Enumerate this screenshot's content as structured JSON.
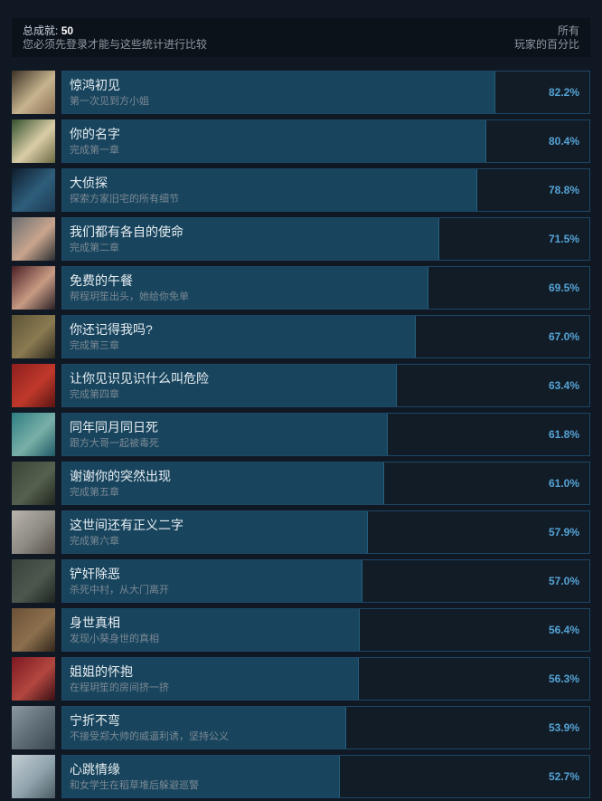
{
  "header": {
    "total_label": "总成就:",
    "total_value": "50",
    "login_note": "您必须先登录才能与这些统计进行比较",
    "right_line1": "所有",
    "right_line2": "玩家的百分比"
  },
  "colors": {
    "page_bg": "#101823",
    "header_bg": "#0c121a",
    "row_bg": "#121c27",
    "bar_fill": "#18455d",
    "row_border": "#1d4766",
    "percent_text": "#55a3d5",
    "title_text": "#e7edf2",
    "desc_text": "#7c8894"
  },
  "achievements": [
    {
      "title": "惊鸿初见",
      "description": "第一次见到方小姐",
      "percent": "82.2%",
      "percent_value": 82.2,
      "icon_name": "achievement-icon-sepia-couple-portrait",
      "icon_colors": [
        "#3c3226",
        "#c7b48e",
        "#8a7055"
      ]
    },
    {
      "title": "你的名字",
      "description": "完成第一章",
      "percent": "80.4%",
      "percent_value": 80.4,
      "icon_name": "achievement-icon-woman-cream-dress-courtyard",
      "icon_colors": [
        "#33502f",
        "#d9cda6",
        "#6b6a44"
      ]
    },
    {
      "title": "大侦探",
      "description": "探索方家旧宅的所有细节",
      "percent": "78.8%",
      "percent_value": 78.8,
      "icon_name": "achievement-icon-dark-blue-mansion",
      "icon_colors": [
        "#0e1d2c",
        "#2e5e7c",
        "#1d3a52"
      ]
    },
    {
      "title": "我们都有各自的使命",
      "description": "完成第二章",
      "percent": "71.5%",
      "percent_value": 71.5,
      "icon_name": "achievement-icon-woman-portrait-grey",
      "icon_colors": [
        "#6a6f72",
        "#c9a58d",
        "#2a2d31"
      ]
    },
    {
      "title": "免费的午餐",
      "description": "帮程玥笙出头，她给你免单",
      "percent": "69.5%",
      "percent_value": 69.5,
      "icon_name": "achievement-icon-woman-red-curtain",
      "icon_colors": [
        "#4a1f24",
        "#c89b84",
        "#2b2125"
      ]
    },
    {
      "title": "你还记得我吗?",
      "description": "完成第三章",
      "percent": "67.0%",
      "percent_value": 67.0,
      "icon_name": "achievement-icon-woman-black-dress-warm-room",
      "icon_colors": [
        "#5d5538",
        "#8a7a50",
        "#2e2a1f"
      ]
    },
    {
      "title": "让你见识见识什么叫危险",
      "description": "完成第四章",
      "percent": "63.4%",
      "percent_value": 63.4,
      "icon_name": "achievement-icon-red-trunk-mirror",
      "icon_colors": [
        "#8e1f1e",
        "#c0392b",
        "#5a1412"
      ]
    },
    {
      "title": "同年同月同日死",
      "description": "跟方大哥一起被毒死",
      "percent": "61.8%",
      "percent_value": 61.8,
      "icon_name": "achievement-icon-teal-poison-scene",
      "icon_colors": [
        "#2e7d83",
        "#79b0a8",
        "#1f5a66"
      ]
    },
    {
      "title": "谢谢你的突然出现",
      "description": "完成第五章",
      "percent": "61.0%",
      "percent_value": 61.0,
      "icon_name": "achievement-icon-two-men-by-tree",
      "icon_colors": [
        "#3a4438",
        "#55614f",
        "#20261f"
      ]
    },
    {
      "title": "这世间还有正义二字",
      "description": "完成第六章",
      "percent": "57.9%",
      "percent_value": 57.9,
      "icon_name": "achievement-icon-group-of-women",
      "icon_colors": [
        "#b9b4ac",
        "#8d8a82",
        "#555049"
      ]
    },
    {
      "title": "铲奸除恶",
      "description": "杀死中村，从大门离开",
      "percent": "57.0%",
      "percent_value": 57.0,
      "icon_name": "achievement-icon-dark-indoor-pair",
      "icon_colors": [
        "#39423c",
        "#4c584e",
        "#1e2420"
      ]
    },
    {
      "title": "身世真相",
      "description": "发现小葵身世的真相",
      "percent": "56.4%",
      "percent_value": 56.4,
      "icon_name": "achievement-icon-woman-at-desk",
      "icon_colors": [
        "#6b5138",
        "#8c6f4c",
        "#32271c"
      ]
    },
    {
      "title": "姐姐的怀抱",
      "description": "在程玥笙的房间挤一挤",
      "percent": "56.3%",
      "percent_value": 56.3,
      "icon_name": "achievement-icon-woman-red-background",
      "icon_colors": [
        "#7c1822",
        "#b3473f",
        "#3a0f14"
      ]
    },
    {
      "title": "宁折不弯",
      "description": "不接受郑大帅的威逼利诱，坚持公义",
      "percent": "53.9%",
      "percent_value": 53.9,
      "icon_name": "achievement-icon-grey-hall-scene",
      "icon_colors": [
        "#8b98a0",
        "#5c6a74",
        "#3a4750"
      ]
    },
    {
      "title": "心跳情缘",
      "description": "和女学生在稻草堆后躲避巡警",
      "percent": "52.7%",
      "percent_value": 52.7,
      "icon_name": "achievement-icon-girl-light-portrait",
      "icon_colors": [
        "#c3cdd2",
        "#8fa3ad",
        "#4a5a60"
      ]
    }
  ]
}
